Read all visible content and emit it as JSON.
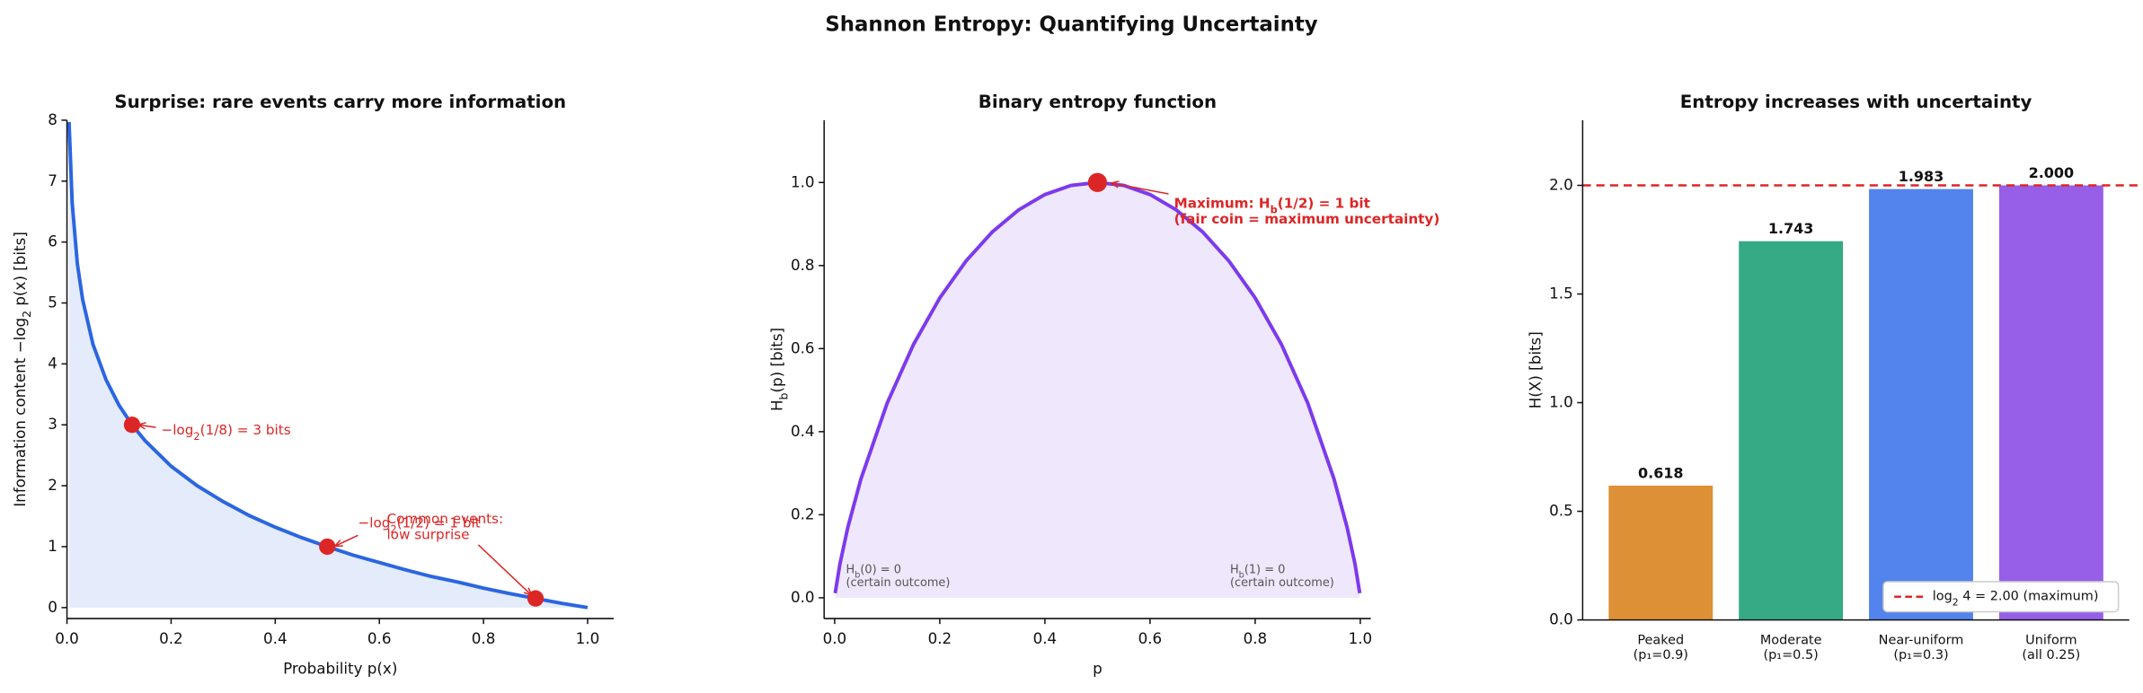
{
  "title": "Shannon Entropy: Quantifying Uncertainty",
  "chart_data": [
    {
      "type": "line",
      "title": "Surprise: rare events carry more information",
      "xlabel": "Probability p(x)",
      "ylabel": "Information content −log_2 p(x) [bits]",
      "x": [
        0.004,
        0.01,
        0.02,
        0.03,
        0.05,
        0.075,
        0.1,
        0.125,
        0.15,
        0.2,
        0.25,
        0.3,
        0.35,
        0.4,
        0.45,
        0.5,
        0.55,
        0.6,
        0.65,
        0.7,
        0.75,
        0.8,
        0.85,
        0.9,
        0.95,
        1.0
      ],
      "series": [
        {
          "color": "#2b66e0",
          "fill": "#e4ebfa",
          "values": [
            7.97,
            6.64,
            5.64,
            5.06,
            4.32,
            3.74,
            3.32,
            3,
            2.74,
            2.32,
            2,
            1.74,
            1.51,
            1.32,
            1.15,
            1,
            0.86,
            0.74,
            0.62,
            0.51,
            0.42,
            0.32,
            0.23,
            0.15,
            0.07,
            0
          ]
        }
      ],
      "points": {
        "color": "#dc2626",
        "x": [
          0.125,
          0.5,
          0.9
        ],
        "values": [
          3,
          1,
          0.15
        ]
      },
      "annotations": [
        "−log_2(1/8) = 3 bits",
        "−log_2(1/2) = 1 bit",
        "Common events:\nlow surprise"
      ],
      "xlim": [
        0,
        1.05
      ],
      "ylim": [
        -0.18,
        8
      ],
      "xticks": [
        {
          "value": 0,
          "label": "0.0"
        },
        0.2,
        0.4,
        0.6,
        0.8,
        {
          "value": 1,
          "label": "1.0"
        }
      ],
      "yticks": [
        0,
        1,
        2,
        3,
        4,
        5,
        6,
        7,
        8
      ]
    },
    {
      "type": "line",
      "title": "Binary entropy function",
      "xlabel": "p",
      "ylabel": "H_b(p) [bits]",
      "x": [
        0.001,
        0.01,
        0.025,
        0.05,
        0.1,
        0.15,
        0.2,
        0.25,
        0.3,
        0.35,
        0.4,
        0.45,
        0.5,
        0.55,
        0.6,
        0.65,
        0.7,
        0.75,
        0.8,
        0.85,
        0.9,
        0.95,
        0.975,
        0.99,
        0.999
      ],
      "series": [
        {
          "color": "#7c3aed",
          "fill": "#efe7fb",
          "values": [
            0.011,
            0.081,
            0.169,
            0.286,
            0.469,
            0.61,
            0.722,
            0.811,
            0.881,
            0.934,
            0.971,
            0.993,
            1,
            0.993,
            0.971,
            0.934,
            0.881,
            0.811,
            0.722,
            0.61,
            0.469,
            0.286,
            0.169,
            0.081,
            0.011
          ]
        }
      ],
      "points": {
        "color": "#dc2626",
        "x": [
          0.5
        ],
        "values": [
          1
        ]
      },
      "annotations": [
        "Maximum: H_b(1/2) = 1 bit\n(fair coin = maximum uncertainty)",
        "H_b(0) = 0\n(certain outcome)",
        "H_b(1) = 0\n(certain outcome)"
      ],
      "xlim": [
        -0.02,
        1.02
      ],
      "ylim": [
        -0.05,
        1.15
      ],
      "xticks": [
        {
          "value": 0,
          "label": "0.0"
        },
        0.2,
        0.4,
        0.6,
        0.8,
        {
          "value": 1,
          "label": "1.0"
        }
      ],
      "yticks": [
        {
          "value": 0,
          "label": "0.0"
        },
        0.2,
        0.4,
        0.6,
        0.8,
        {
          "value": 1,
          "label": "1.0"
        }
      ]
    },
    {
      "type": "bar",
      "title": "Entropy increases with uncertainty",
      "ylabel": "H(X) [bits]",
      "categories": [
        "Peaked\n(p₁=0.9)",
        "Moderate\n(p₁=0.5)",
        "Near-uniform\n(p₁=0.3)",
        "Uniform\n(all 0.25)"
      ],
      "values": [
        0.618,
        1.743,
        1.983,
        2
      ],
      "value_labels": [
        "0.618",
        "1.743",
        "1.983",
        "2.000"
      ],
      "colors": [
        "#dd9035",
        "#36a985",
        "#5383ec",
        "#975fe8"
      ],
      "hline": {
        "value": 2,
        "color": "#dc2626",
        "label": "log_2 4 = 2.00 (maximum)"
      },
      "legend": "lower right",
      "ylim": [
        0,
        2.3
      ],
      "yticks": [
        {
          "value": 0,
          "label": "0.0"
        },
        0.5,
        {
          "value": 1,
          "label": "1.0"
        },
        1.5,
        {
          "value": 2,
          "label": "2.0"
        }
      ]
    }
  ]
}
